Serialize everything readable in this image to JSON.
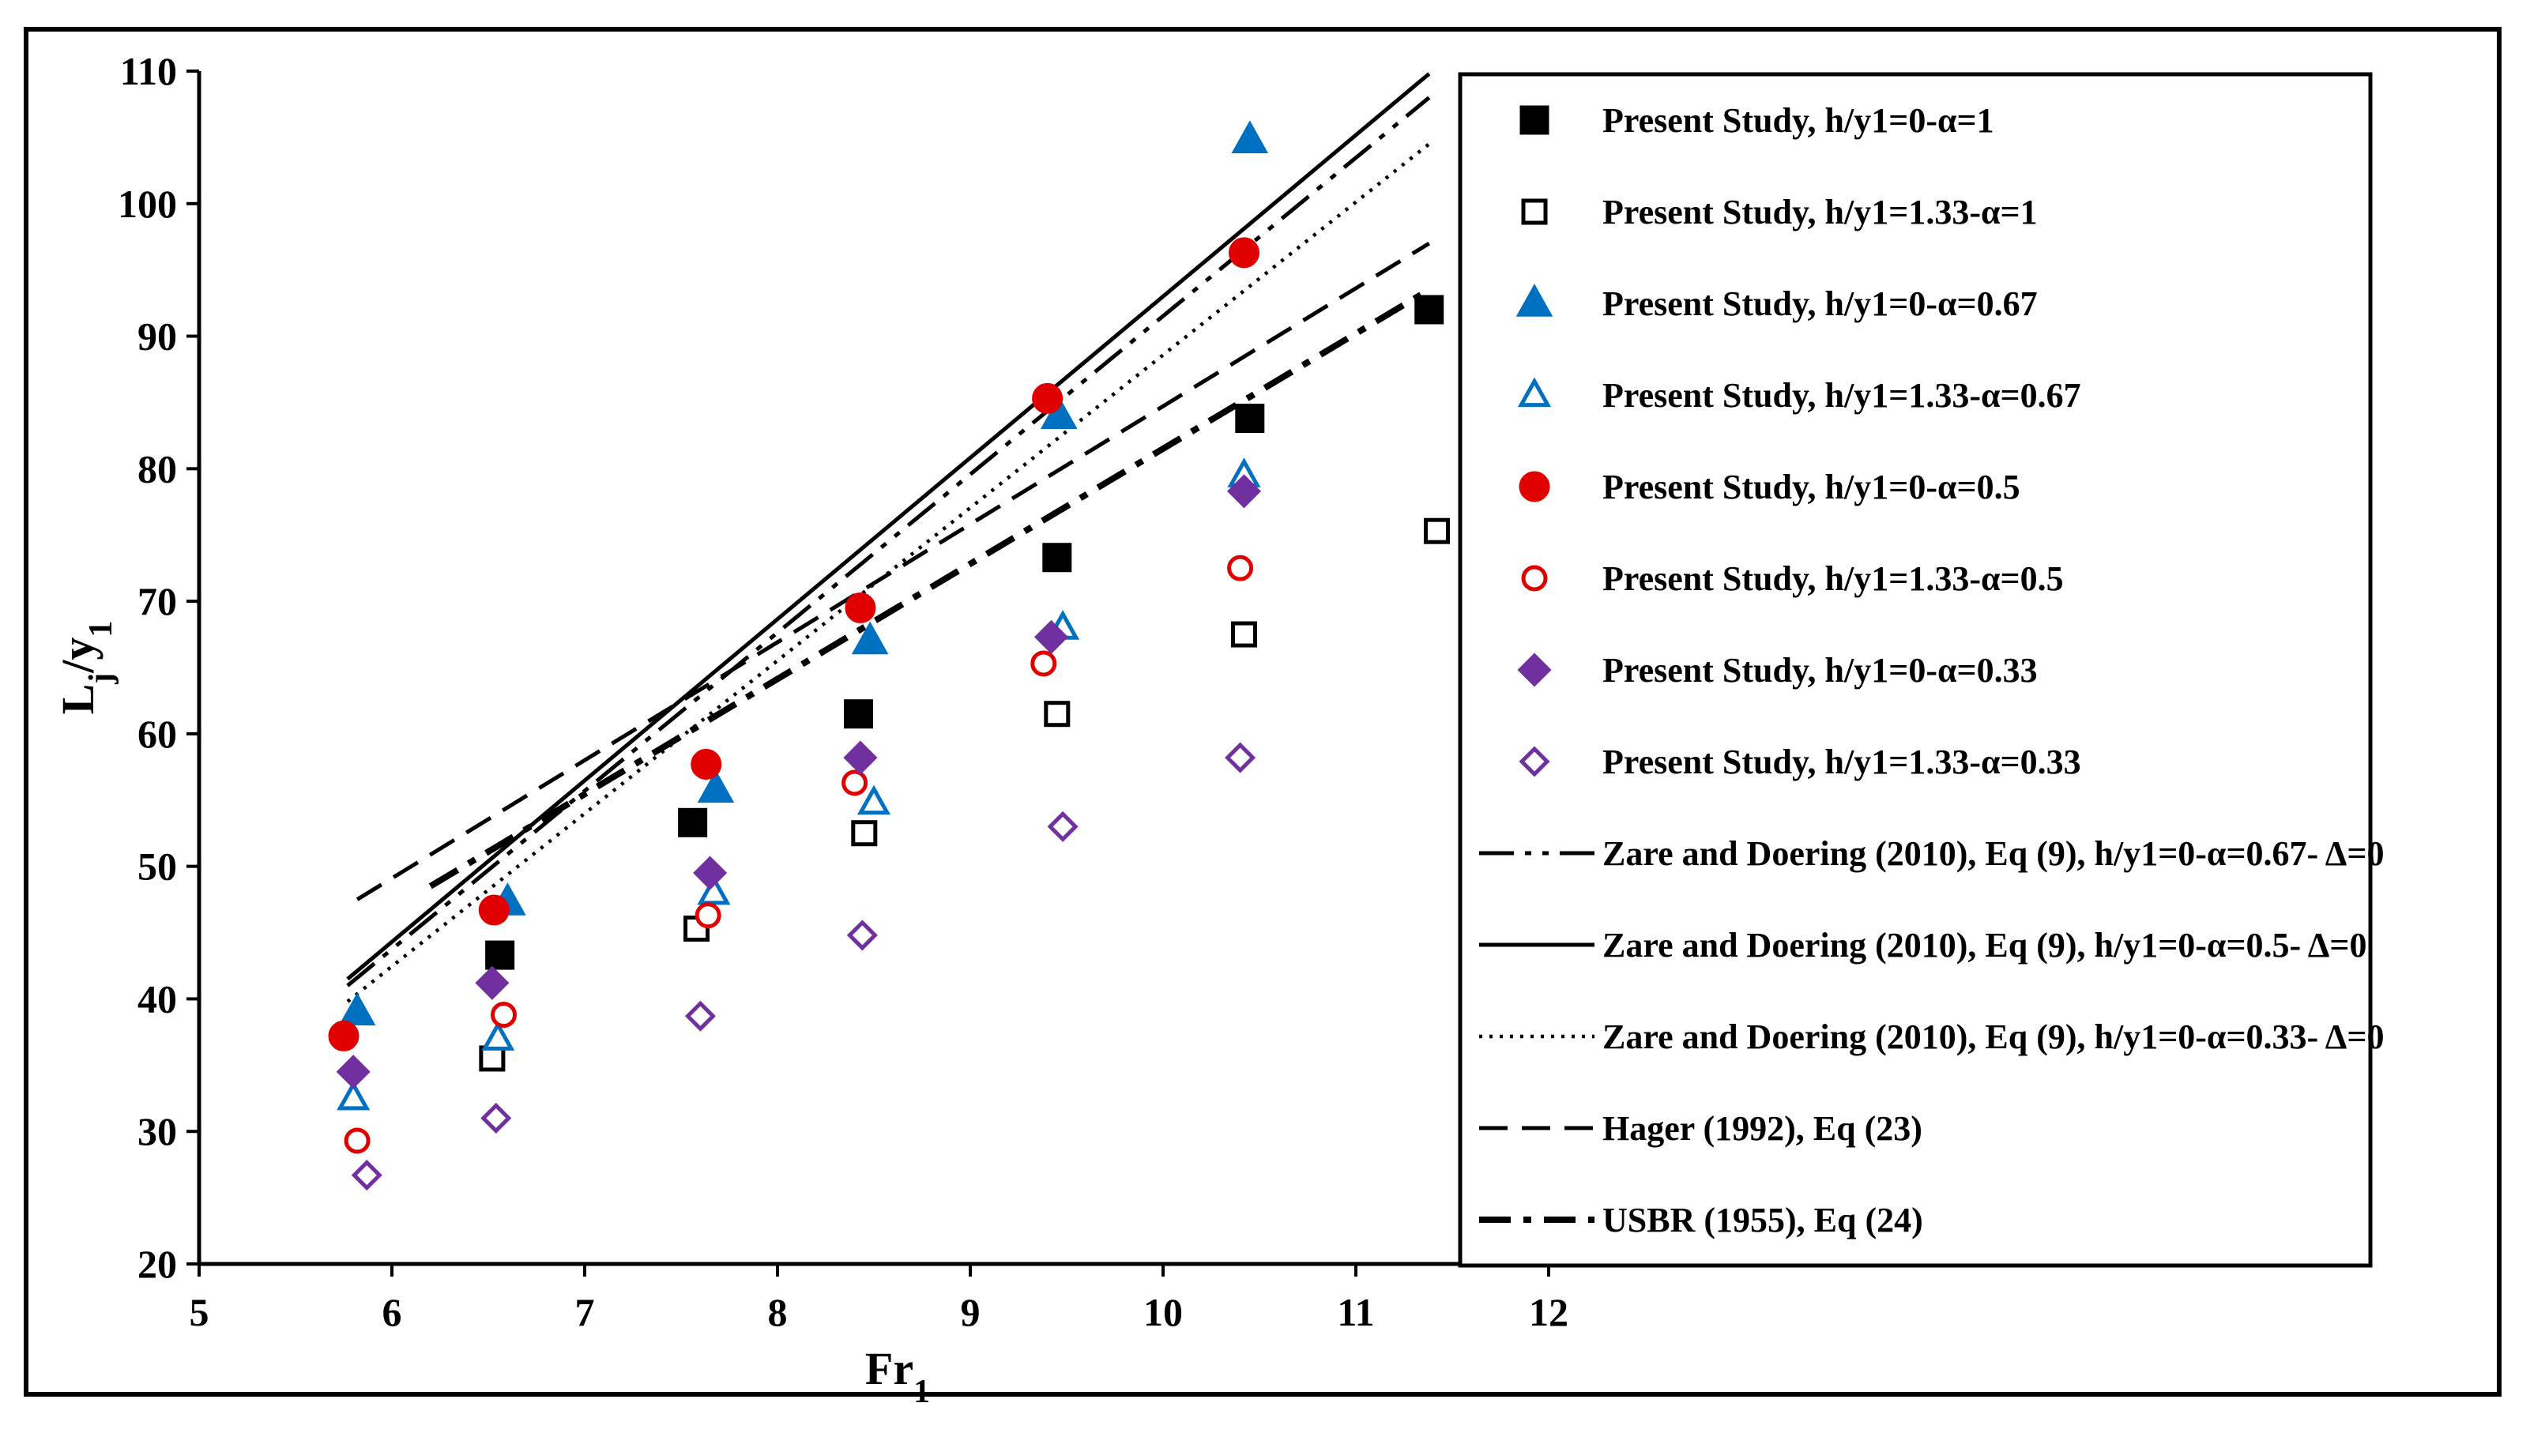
{
  "chart_data": {
    "type": "scatter",
    "title": "",
    "xlabel": "Fr",
    "xlabel_sub": "1",
    "ylabel": "L",
    "ylabel_sub1": "j",
    "ylabel_mid": "/y",
    "ylabel_sub2": "1",
    "xlim": [
      5,
      12
    ],
    "ylim": [
      20,
      110
    ],
    "xticks": [
      5,
      6,
      7,
      8,
      9,
      10,
      11,
      12
    ],
    "yticks": [
      20,
      30,
      40,
      50,
      60,
      70,
      80,
      90,
      100,
      110
    ],
    "grid": false,
    "legend_position": "right",
    "series": [
      {
        "name": "Present Study, h/y1=0-α=1",
        "marker": "square",
        "filled": true,
        "color": "#000000",
        "points": [
          [
            6.56,
            43.3
          ],
          [
            7.56,
            53.3
          ],
          [
            8.42,
            61.5
          ],
          [
            9.45,
            73.3
          ],
          [
            10.45,
            83.8
          ],
          [
            11.38,
            92.0
          ]
        ]
      },
      {
        "name": "Present Study, h/y1=1.33-α=1",
        "marker": "square",
        "filled": false,
        "color": "#000000",
        "points": [
          [
            6.52,
            35.5
          ],
          [
            7.58,
            45.3
          ],
          [
            8.45,
            52.5
          ],
          [
            9.45,
            61.5
          ],
          [
            10.42,
            67.5
          ],
          [
            11.42,
            75.3
          ]
        ]
      },
      {
        "name": "Present Study, h/y1=0-α=0.67",
        "marker": "triangle",
        "filled": true,
        "color": "#0070C0",
        "points": [
          [
            5.82,
            39.0
          ],
          [
            6.6,
            47.3
          ],
          [
            7.68,
            55.8
          ],
          [
            8.48,
            67.0
          ],
          [
            9.46,
            84.0
          ],
          [
            10.45,
            104.8
          ]
        ]
      },
      {
        "name": "Present Study, h/y1=1.33-α=0.67",
        "marker": "triangle",
        "filled": false,
        "color": "#0070C0",
        "points": [
          [
            5.8,
            32.5
          ],
          [
            6.55,
            37.0
          ],
          [
            7.67,
            48.0
          ],
          [
            8.5,
            54.8
          ],
          [
            9.48,
            68.0
          ],
          [
            10.42,
            79.5
          ]
        ]
      },
      {
        "name": "Present Study, h/y1=0-α=0.5",
        "marker": "circle",
        "filled": true,
        "color": "#E00000",
        "points": [
          [
            5.75,
            37.2
          ],
          [
            6.53,
            46.7
          ],
          [
            7.63,
            57.7
          ],
          [
            8.43,
            69.5
          ],
          [
            9.4,
            85.3
          ],
          [
            10.42,
            96.3
          ]
        ]
      },
      {
        "name": "Present Study, h/y1=1.33-α=0.5",
        "marker": "circle",
        "filled": false,
        "color": "#E00000",
        "points": [
          [
            5.82,
            29.3
          ],
          [
            6.58,
            38.8
          ],
          [
            7.64,
            46.3
          ],
          [
            8.4,
            56.3
          ],
          [
            9.38,
            65.3
          ],
          [
            10.4,
            72.5
          ]
        ]
      },
      {
        "name": "Present Study, h/y1=0-α=0.33",
        "marker": "diamond",
        "filled": true,
        "color": "#7030A0",
        "points": [
          [
            5.8,
            34.5
          ],
          [
            6.52,
            41.2
          ],
          [
            7.65,
            49.5
          ],
          [
            8.43,
            58.2
          ],
          [
            9.42,
            67.3
          ],
          [
            10.42,
            78.3
          ]
        ]
      },
      {
        "name": "Present Study, h/y1=1.33-α=0.33",
        "marker": "diamond",
        "filled": false,
        "color": "#7030A0",
        "points": [
          [
            5.87,
            26.7
          ],
          [
            6.54,
            31.0
          ],
          [
            7.6,
            38.7
          ],
          [
            8.44,
            44.8
          ],
          [
            9.48,
            53.0
          ],
          [
            10.4,
            58.2
          ]
        ]
      }
    ],
    "lines": [
      {
        "name": "Zare and Doering (2010), Eq (9), h/y1=0-α=0.67- Δ=0",
        "style": "dash-dot-dot",
        "points": [
          [
            5.77,
            41.0
          ],
          [
            11.38,
            108.0
          ]
        ]
      },
      {
        "name": "Zare and Doering (2010), Eq (9), h/y1=0-α=0.5- Δ=0",
        "style": "solid",
        "points": [
          [
            5.77,
            41.5
          ],
          [
            11.38,
            109.8
          ]
        ]
      },
      {
        "name": "Zare and Doering (2010), Eq (9), h/y1=0-α=0.33- Δ=0",
        "style": "dotted",
        "points": [
          [
            5.77,
            39.8
          ],
          [
            11.38,
            104.5
          ]
        ]
      },
      {
        "name": "Hager (1992), Eq (23)",
        "style": "dashed",
        "points": [
          [
            5.82,
            47.5
          ],
          [
            11.38,
            97.0
          ]
        ]
      },
      {
        "name": "USBR (1955), Eq (24)",
        "style": "dash-dot",
        "points": [
          [
            6.2,
            48.5
          ],
          [
            11.38,
            93.5
          ]
        ]
      }
    ]
  }
}
